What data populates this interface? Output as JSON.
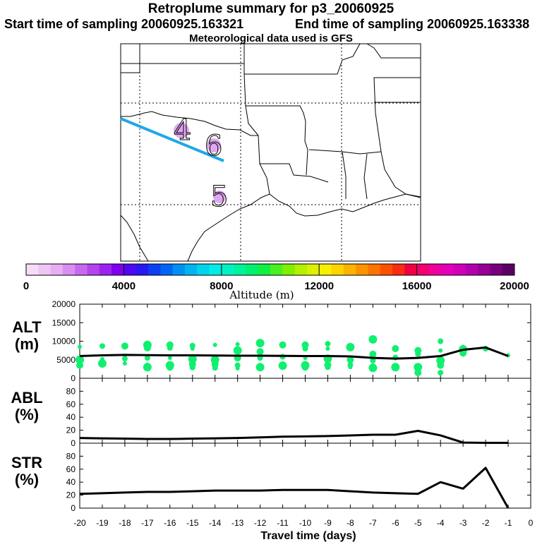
{
  "header": {
    "title": "Retroplume summary for p3_20060925",
    "start": "Start time of sampling 20060925.163321",
    "end": "End time of sampling 20060925.163338",
    "met": "Meteorological data used is GFS"
  },
  "map": {
    "numerals": [
      "4",
      "6",
      "5"
    ],
    "trajectory_color": "#1ea8ea",
    "marker_color": "#e0a8f0"
  },
  "colorbar": {
    "title": "Altitude (m)",
    "tick_labels": [
      "0",
      "4000",
      "8000",
      "12000",
      "16000",
      "20000"
    ],
    "range": [
      0,
      20000
    ],
    "colors": [
      "#f6dcf6",
      "#efc6f3",
      "#e7aef1",
      "#d98ef2",
      "#c768ef",
      "#b344ee",
      "#9c24ee",
      "#8000f0",
      "#5008f0",
      "#2a18f2",
      "#0a40f2",
      "#0064f4",
      "#0090f4",
      "#00b4f0",
      "#00d4ec",
      "#00ece8",
      "#00f2c4",
      "#00f29c",
      "#00f070",
      "#10f040",
      "#48f020",
      "#80f000",
      "#b4f000",
      "#dcf000",
      "#f8f000",
      "#fcd400",
      "#fcb400",
      "#fc9400",
      "#fc7400",
      "#fc5000",
      "#f82c10",
      "#f00040",
      "#f40070",
      "#f0009c",
      "#e400b8",
      "#d000b8",
      "#b400ac",
      "#960094",
      "#78007c",
      "#5c0064"
    ]
  },
  "chart_data": {
    "type": "line",
    "xlabel": "Travel time (days)",
    "x_ticks": [
      "-20",
      "-19",
      "-18",
      "-17",
      "-16",
      "-15",
      "-14",
      "-13",
      "-12",
      "-11",
      "-10",
      "-9",
      "-8",
      "-7",
      "-6",
      "-5",
      "-4",
      "-3",
      "-2",
      "-1",
      "0"
    ],
    "x_tick_values": [
      -20,
      -19,
      -18,
      -17,
      -16,
      -15,
      -14,
      -13,
      -12,
      -11,
      -10,
      -9,
      -8,
      -7,
      -6,
      -5,
      -4,
      -3,
      -2,
      -1,
      0
    ],
    "xlim": [
      -20,
      0
    ],
    "panels": [
      {
        "name": "ALT",
        "label_line1": "ALT",
        "label_line2": "(m)",
        "ylim": [
          0,
          20000
        ],
        "y_ticks": [
          "0",
          "5000",
          "10000",
          "15000",
          "20000"
        ],
        "y_tick_values": [
          0,
          5000,
          10000,
          15000,
          20000
        ],
        "line": {
          "x": [
            -20,
            -19,
            -18,
            -17,
            -16,
            -15,
            -14,
            -13,
            -12,
            -11,
            -10,
            -9,
            -8,
            -7,
            -6,
            -5,
            -4,
            -3,
            -2,
            -1
          ],
          "y": [
            6000,
            6200,
            6300,
            6250,
            6200,
            6200,
            6150,
            6100,
            6100,
            6050,
            6000,
            6000,
            5900,
            5500,
            5300,
            5500,
            6000,
            7700,
            8300,
            6000
          ]
        },
        "scatter": {
          "color": "#10f070",
          "points": [
            [
              -20,
              8500
            ],
            [
              -20,
              5000
            ],
            [
              -20,
              3500
            ],
            [
              -19,
              8700
            ],
            [
              -19,
              5200
            ],
            [
              -19,
              4000
            ],
            [
              -18,
              8700
            ],
            [
              -18,
              5300
            ],
            [
              -18,
              4000
            ],
            [
              -17,
              9000
            ],
            [
              -17,
              8200
            ],
            [
              -17,
              5500
            ],
            [
              -17,
              3700
            ],
            [
              -17,
              3000
            ],
            [
              -16,
              9000
            ],
            [
              -16,
              8200
            ],
            [
              -16,
              5500
            ],
            [
              -16,
              3500
            ],
            [
              -16,
              3000
            ],
            [
              -15,
              8800
            ],
            [
              -15,
              8000
            ],
            [
              -15,
              5200
            ],
            [
              -15,
              3800
            ],
            [
              -15,
              2900
            ],
            [
              -14,
              9000
            ],
            [
              -14,
              5000
            ],
            [
              -14,
              3800
            ],
            [
              -14,
              2800
            ],
            [
              -13,
              9200
            ],
            [
              -13,
              7500
            ],
            [
              -13,
              5500
            ],
            [
              -13,
              3500
            ],
            [
              -13,
              2700
            ],
            [
              -12,
              9500
            ],
            [
              -12,
              7200
            ],
            [
              -12,
              5500
            ],
            [
              -12,
              3500
            ],
            [
              -12,
              3000
            ],
            [
              -11,
              9000
            ],
            [
              -11,
              5800
            ],
            [
              -11,
              4000
            ],
            [
              -11,
              3400
            ],
            [
              -10,
              9000
            ],
            [
              -10,
              8000
            ],
            [
              -10,
              5500
            ],
            [
              -10,
              3500
            ],
            [
              -10,
              3000
            ],
            [
              -9,
              9300
            ],
            [
              -9,
              8000
            ],
            [
              -9,
              5300
            ],
            [
              -9,
              3600
            ],
            [
              -9,
              3000
            ],
            [
              -8,
              9000
            ],
            [
              -8,
              8400
            ],
            [
              -8,
              5000
            ],
            [
              -8,
              3600
            ],
            [
              -8,
              3000
            ],
            [
              -7,
              10500
            ],
            [
              -7,
              6500
            ],
            [
              -7,
              4800
            ],
            [
              -7,
              3500
            ],
            [
              -7,
              2800
            ],
            [
              -6,
              8000
            ],
            [
              -6,
              5600
            ],
            [
              -6,
              3500
            ],
            [
              -6,
              3000
            ],
            [
              -5,
              7500
            ],
            [
              -5,
              6500
            ],
            [
              -5,
              3500
            ],
            [
              -5,
              3000
            ],
            [
              -5,
              1500
            ],
            [
              -4,
              10000
            ],
            [
              -4,
              7500
            ],
            [
              -4,
              4800
            ],
            [
              -4,
              3500
            ],
            [
              -4,
              1500
            ],
            [
              -3,
              8500
            ],
            [
              -3,
              7800
            ],
            [
              -3,
              6800
            ],
            [
              -2,
              8000
            ],
            [
              -1,
              6200
            ]
          ]
        }
      },
      {
        "name": "ABL",
        "label_line1": "ABL",
        "label_line2": "(%)",
        "ylim": [
          0,
          100
        ],
        "y_ticks": [
          "0",
          "20",
          "40",
          "60",
          "80"
        ],
        "y_tick_values": [
          0,
          20,
          40,
          60,
          80
        ],
        "line": {
          "x": [
            -20,
            -19,
            -18,
            -17,
            -16,
            -15,
            -14,
            -13,
            -12,
            -11,
            -10,
            -9,
            -8,
            -7,
            -6,
            -5,
            -4,
            -3,
            -2,
            -1
          ],
          "y": [
            8,
            7.5,
            7,
            6.5,
            6.5,
            7,
            7.5,
            8,
            9,
            10,
            10.5,
            11,
            12,
            13,
            13,
            19,
            12,
            1,
            0.5,
            0.5
          ]
        }
      },
      {
        "name": "STR",
        "label_line1": "STR",
        "label_line2": "(%)",
        "ylim": [
          0,
          100
        ],
        "y_ticks": [
          "0",
          "20",
          "40",
          "60",
          "80"
        ],
        "y_tick_values": [
          0,
          20,
          40,
          60,
          80
        ],
        "line": {
          "x": [
            -20,
            -19,
            -18,
            -17,
            -16,
            -15,
            -14,
            -13,
            -12,
            -11,
            -10,
            -9,
            -8,
            -7,
            -6,
            -5,
            -4,
            -3,
            -2,
            -1
          ],
          "y": [
            22,
            23,
            24,
            25,
            25,
            26,
            27,
            27,
            27,
            28,
            28,
            28,
            26,
            24,
            23,
            22,
            40,
            30,
            62,
            0
          ]
        }
      }
    ]
  }
}
